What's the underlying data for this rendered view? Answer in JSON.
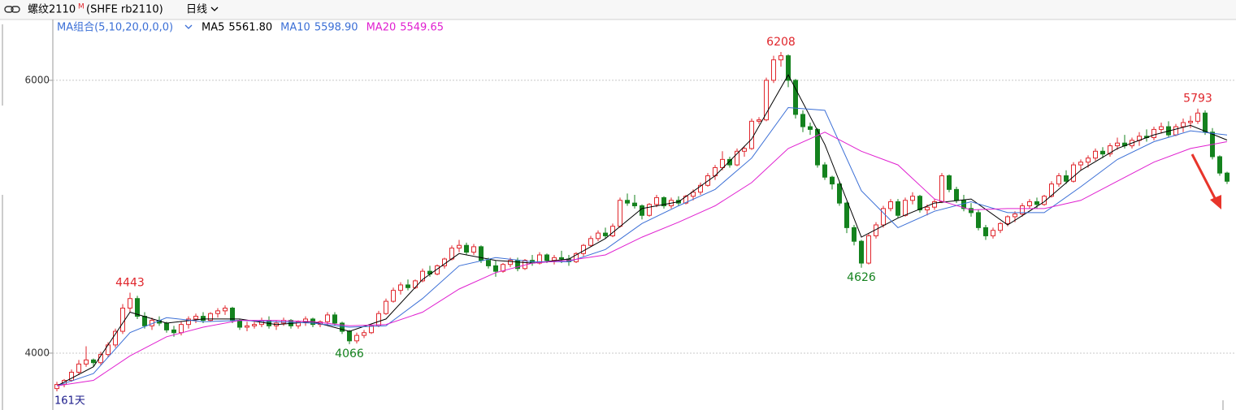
{
  "header": {
    "symbol": "螺纹2110",
    "badge": "M",
    "exchange": "(SHFE rb2110)",
    "period": "日线"
  },
  "chart_data": {
    "type": "candlestick",
    "indicator": "MA组合(5,10,20,0,0,0)",
    "period_label": "161天",
    "up_color": "#e0262c",
    "down_color": "#14821e",
    "ylim": [
      3583,
      6440
    ],
    "yticks": [
      4000,
      6000
    ],
    "grid": true,
    "annotations": [
      {
        "value": 4443,
        "at": "high"
      },
      {
        "value": 4066,
        "at": "low"
      },
      {
        "value": 6208,
        "at": "high"
      },
      {
        "value": 4626,
        "at": "low"
      },
      {
        "value": 5793,
        "at": "high"
      }
    ],
    "candles": [
      [
        3740,
        3790,
        3720,
        3770
      ],
      [
        3770,
        3810,
        3750,
        3800
      ],
      [
        3800,
        3880,
        3790,
        3860
      ],
      [
        3860,
        3950,
        3840,
        3920
      ],
      [
        3920,
        4050,
        3900,
        3950
      ],
      [
        3950,
        3960,
        3900,
        3930
      ],
      [
        3930,
        4010,
        3910,
        3990
      ],
      [
        3990,
        4080,
        3970,
        4060
      ],
      [
        4060,
        4180,
        4040,
        4160
      ],
      [
        4160,
        4360,
        4140,
        4330
      ],
      [
        4330,
        4443,
        4300,
        4400
      ],
      [
        4400,
        4420,
        4250,
        4270
      ],
      [
        4270,
        4300,
        4180,
        4200
      ],
      [
        4200,
        4260,
        4170,
        4240
      ],
      [
        4240,
        4270,
        4200,
        4220
      ],
      [
        4220,
        4230,
        4150,
        4170
      ],
      [
        4170,
        4200,
        4120,
        4150
      ],
      [
        4150,
        4230,
        4130,
        4210
      ],
      [
        4210,
        4270,
        4180,
        4250
      ],
      [
        4250,
        4290,
        4220,
        4270
      ],
      [
        4270,
        4300,
        4220,
        4240
      ],
      [
        4240,
        4300,
        4230,
        4290
      ],
      [
        4290,
        4330,
        4260,
        4310
      ],
      [
        4310,
        4350,
        4280,
        4330
      ],
      [
        4330,
        4340,
        4220,
        4240
      ],
      [
        4240,
        4250,
        4170,
        4190
      ],
      [
        4190,
        4230,
        4160,
        4200
      ],
      [
        4200,
        4230,
        4180,
        4210
      ],
      [
        4210,
        4260,
        4190,
        4240
      ],
      [
        4240,
        4270,
        4180,
        4200
      ],
      [
        4200,
        4240,
        4170,
        4220
      ],
      [
        4220,
        4260,
        4200,
        4240
      ],
      [
        4240,
        4250,
        4180,
        4200
      ],
      [
        4200,
        4240,
        4180,
        4230
      ],
      [
        4230,
        4270,
        4200,
        4250
      ],
      [
        4250,
        4260,
        4190,
        4210
      ],
      [
        4210,
        4240,
        4190,
        4230
      ],
      [
        4230,
        4300,
        4210,
        4280
      ],
      [
        4280,
        4300,
        4200,
        4220
      ],
      [
        4220,
        4230,
        4140,
        4160
      ],
      [
        4160,
        4170,
        4066,
        4090
      ],
      [
        4090,
        4150,
        4070,
        4130
      ],
      [
        4130,
        4170,
        4110,
        4150
      ],
      [
        4150,
        4210,
        4140,
        4200
      ],
      [
        4200,
        4310,
        4190,
        4290
      ],
      [
        4290,
        4400,
        4280,
        4380
      ],
      [
        4380,
        4480,
        4370,
        4460
      ],
      [
        4460,
        4520,
        4430,
        4500
      ],
      [
        4500,
        4540,
        4460,
        4480
      ],
      [
        4480,
        4540,
        4470,
        4530
      ],
      [
        4530,
        4620,
        4520,
        4600
      ],
      [
        4600,
        4640,
        4560,
        4580
      ],
      [
        4580,
        4650,
        4570,
        4640
      ],
      [
        4640,
        4700,
        4620,
        4690
      ],
      [
        4690,
        4790,
        4680,
        4770
      ],
      [
        4770,
        4830,
        4740,
        4790
      ],
      [
        4790,
        4810,
        4720,
        4740
      ],
      [
        4740,
        4800,
        4720,
        4780
      ],
      [
        4780,
        4790,
        4660,
        4680
      ],
      [
        4680,
        4700,
        4620,
        4640
      ],
      [
        4640,
        4680,
        4560,
        4600
      ],
      [
        4600,
        4660,
        4590,
        4650
      ],
      [
        4650,
        4700,
        4630,
        4680
      ],
      [
        4680,
        4700,
        4600,
        4620
      ],
      [
        4620,
        4690,
        4610,
        4680
      ],
      [
        4680,
        4720,
        4640,
        4660
      ],
      [
        4660,
        4740,
        4650,
        4720
      ],
      [
        4720,
        4730,
        4660,
        4680
      ],
      [
        4680,
        4720,
        4650,
        4700
      ],
      [
        4700,
        4750,
        4660,
        4690
      ],
      [
        4690,
        4720,
        4640,
        4670
      ],
      [
        4670,
        4740,
        4660,
        4730
      ],
      [
        4730,
        4800,
        4710,
        4790
      ],
      [
        4790,
        4860,
        4780,
        4840
      ],
      [
        4840,
        4900,
        4820,
        4880
      ],
      [
        4880,
        4920,
        4840,
        4860
      ],
      [
        4860,
        4950,
        4850,
        4930
      ],
      [
        4930,
        5140,
        4920,
        5120
      ],
      [
        5120,
        5170,
        5080,
        5100
      ],
      [
        5100,
        5160,
        5060,
        5080
      ],
      [
        5080,
        5090,
        4980,
        5010
      ],
      [
        5010,
        5100,
        5000,
        5090
      ],
      [
        5090,
        5160,
        5070,
        5140
      ],
      [
        5140,
        5150,
        5060,
        5080
      ],
      [
        5080,
        5140,
        5060,
        5120
      ],
      [
        5120,
        5150,
        5080,
        5100
      ],
      [
        5100,
        5160,
        5090,
        5150
      ],
      [
        5150,
        5200,
        5120,
        5180
      ],
      [
        5180,
        5250,
        5160,
        5230
      ],
      [
        5230,
        5320,
        5220,
        5300
      ],
      [
        5300,
        5380,
        5270,
        5360
      ],
      [
        5360,
        5480,
        5340,
        5420
      ],
      [
        5420,
        5440,
        5360,
        5380
      ],
      [
        5380,
        5500,
        5370,
        5480
      ],
      [
        5480,
        5520,
        5440,
        5500
      ],
      [
        5500,
        5720,
        5490,
        5700
      ],
      [
        5700,
        5730,
        5680,
        5710
      ],
      [
        5710,
        6020,
        5700,
        6000
      ],
      [
        6000,
        6180,
        5980,
        6150
      ],
      [
        6150,
        6208,
        6100,
        6180
      ],
      [
        6180,
        6190,
        5950,
        6000
      ],
      [
        6000,
        6010,
        5720,
        5750
      ],
      [
        5750,
        5780,
        5620,
        5660
      ],
      [
        5660,
        5690,
        5600,
        5640
      ],
      [
        5640,
        5650,
        5360,
        5380
      ],
      [
        5380,
        5400,
        5270,
        5290
      ],
      [
        5290,
        5300,
        5200,
        5240
      ],
      [
        5240,
        5260,
        5080,
        5100
      ],
      [
        5100,
        5110,
        4880,
        4920
      ],
      [
        4920,
        4940,
        4790,
        4820
      ],
      [
        4820,
        4830,
        4626,
        4660
      ],
      [
        4660,
        4880,
        4650,
        4860
      ],
      [
        4860,
        4960,
        4840,
        4940
      ],
      [
        4940,
        5080,
        4920,
        5060
      ],
      [
        5060,
        5130,
        5040,
        5110
      ],
      [
        5110,
        5130,
        4990,
        5010
      ],
      [
        5010,
        5140,
        5000,
        5120
      ],
      [
        5120,
        5180,
        5090,
        5150
      ],
      [
        5150,
        5160,
        5030,
        5050
      ],
      [
        5050,
        5090,
        5010,
        5070
      ],
      [
        5070,
        5130,
        5050,
        5110
      ],
      [
        5110,
        5320,
        5100,
        5300
      ],
      [
        5300,
        5310,
        5180,
        5200
      ],
      [
        5200,
        5220,
        5100,
        5120
      ],
      [
        5120,
        5160,
        5040,
        5060
      ],
      [
        5060,
        5100,
        5000,
        5030
      ],
      [
        5030,
        5050,
        4900,
        4920
      ],
      [
        4920,
        4940,
        4830,
        4860
      ],
      [
        4860,
        4920,
        4840,
        4900
      ],
      [
        4900,
        4960,
        4880,
        4950
      ],
      [
        4950,
        5010,
        4930,
        5000
      ],
      [
        5000,
        5040,
        4960,
        5020
      ],
      [
        5020,
        5100,
        5000,
        5080
      ],
      [
        5080,
        5130,
        5060,
        5110
      ],
      [
        5110,
        5140,
        5060,
        5090
      ],
      [
        5090,
        5160,
        5080,
        5150
      ],
      [
        5150,
        5260,
        5140,
        5240
      ],
      [
        5240,
        5320,
        5220,
        5300
      ],
      [
        5300,
        5340,
        5240,
        5260
      ],
      [
        5260,
        5400,
        5250,
        5380
      ],
      [
        5380,
        5420,
        5340,
        5400
      ],
      [
        5400,
        5450,
        5360,
        5430
      ],
      [
        5430,
        5500,
        5410,
        5480
      ],
      [
        5480,
        5510,
        5430,
        5460
      ],
      [
        5460,
        5540,
        5440,
        5520
      ],
      [
        5520,
        5580,
        5490,
        5540
      ],
      [
        5540,
        5600,
        5500,
        5520
      ],
      [
        5520,
        5580,
        5500,
        5560
      ],
      [
        5560,
        5620,
        5520,
        5590
      ],
      [
        5590,
        5640,
        5550,
        5580
      ],
      [
        5580,
        5660,
        5560,
        5640
      ],
      [
        5640,
        5690,
        5610,
        5660
      ],
      [
        5660,
        5700,
        5580,
        5600
      ],
      [
        5600,
        5680,
        5590,
        5660
      ],
      [
        5660,
        5720,
        5620,
        5690
      ],
      [
        5690,
        5740,
        5650,
        5700
      ],
      [
        5700,
        5793,
        5680,
        5760
      ],
      [
        5760,
        5780,
        5600,
        5620
      ],
      [
        5620,
        5650,
        5420,
        5440
      ],
      [
        5440,
        5450,
        5300,
        5320
      ],
      [
        5320,
        5330,
        5240,
        5260
      ]
    ],
    "ma_x": [
      0,
      5,
      10,
      15,
      20,
      25,
      30,
      35,
      40,
      45,
      50,
      55,
      60,
      65,
      70,
      75,
      80,
      85,
      90,
      95,
      100,
      105,
      110,
      115,
      120,
      125,
      130,
      135,
      140,
      145,
      150,
      155,
      160
    ],
    "series": [
      {
        "name": "MA5",
        "legend_value": "5561.80",
        "color": "#000000",
        "values": [
          3760,
          3900,
          4300,
          4220,
          4250,
          4250,
          4210,
          4230,
          4160,
          4250,
          4540,
          4730,
          4680,
          4660,
          4690,
          4840,
          5060,
          5110,
          5300,
          5570,
          6040,
          5530,
          4850,
          4990,
          5100,
          5130,
          4940,
          5110,
          5340,
          5500,
          5600,
          5670,
          5562
        ]
      },
      {
        "name": "MA10",
        "legend_value": "5598.90",
        "color": "#3b6fd6",
        "values": [
          3760,
          3850,
          4150,
          4260,
          4230,
          4240,
          4230,
          4220,
          4190,
          4200,
          4400,
          4640,
          4700,
          4670,
          4670,
          4760,
          4950,
          5080,
          5200,
          5430,
          5800,
          5780,
          5190,
          4920,
          5040,
          5110,
          5030,
          5030,
          5220,
          5420,
          5550,
          5630,
          5599
        ]
      },
      {
        "name": "MA20",
        "legend_value": "5549.65",
        "color": "#e020d0",
        "values": [
          3760,
          3800,
          3980,
          4120,
          4190,
          4240,
          4240,
          4230,
          4200,
          4210,
          4300,
          4470,
          4590,
          4660,
          4680,
          4720,
          4850,
          4960,
          5080,
          5250,
          5500,
          5620,
          5480,
          5380,
          5130,
          5050,
          5060,
          5060,
          5120,
          5260,
          5400,
          5500,
          5550
        ]
      }
    ]
  }
}
